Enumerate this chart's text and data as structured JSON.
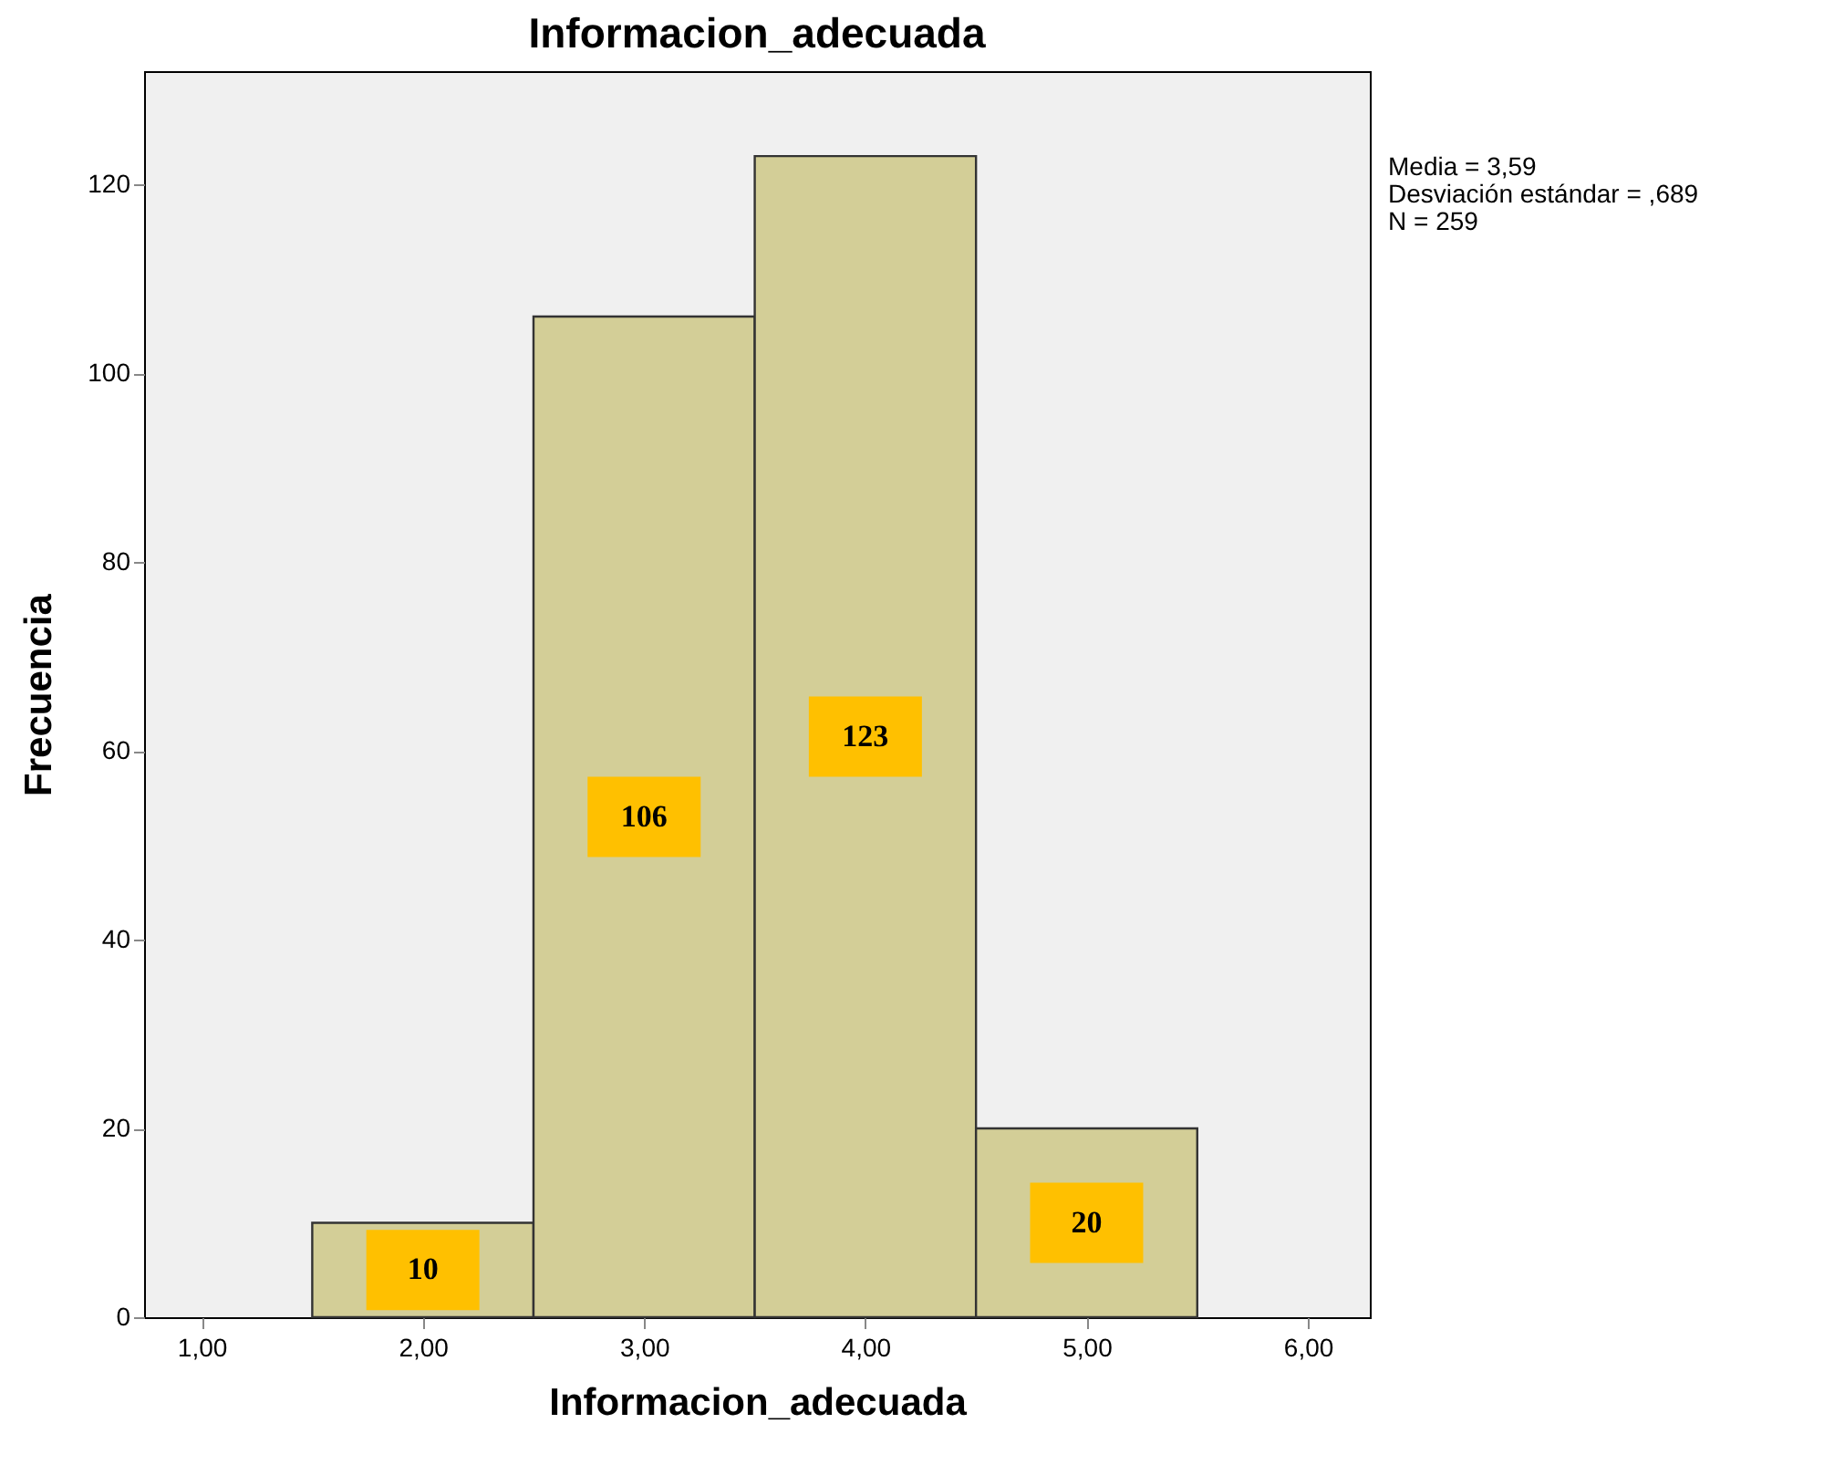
{
  "chart_data": {
    "type": "histogram",
    "title": "Informacion_adecuada",
    "xlabel": "Informacion_adecuada",
    "ylabel": "Frecuencia",
    "bins": [
      1.5,
      2.5,
      3.5,
      4.5,
      5.5
    ],
    "values": [
      10,
      106,
      123,
      20
    ],
    "color": "#d3ce97",
    "data_labels": true,
    "xlim": [
      0.74,
      6.28
    ],
    "xticks": [
      {
        "value": 1,
        "label": "1,00"
      },
      {
        "value": 2,
        "label": "2,00"
      },
      {
        "value": 3,
        "label": "3,00"
      },
      {
        "value": 4,
        "label": "4,00"
      },
      {
        "value": 5,
        "label": "5,00"
      },
      {
        "value": 6,
        "label": "6,00"
      }
    ],
    "ylim": [
      0,
      132
    ],
    "yticks": [
      0,
      20,
      40,
      60,
      80,
      100,
      120
    ],
    "grid": false,
    "annotations": [
      "Media = 3,59",
      "Desviación estándar = ,689",
      "N = 259"
    ]
  }
}
